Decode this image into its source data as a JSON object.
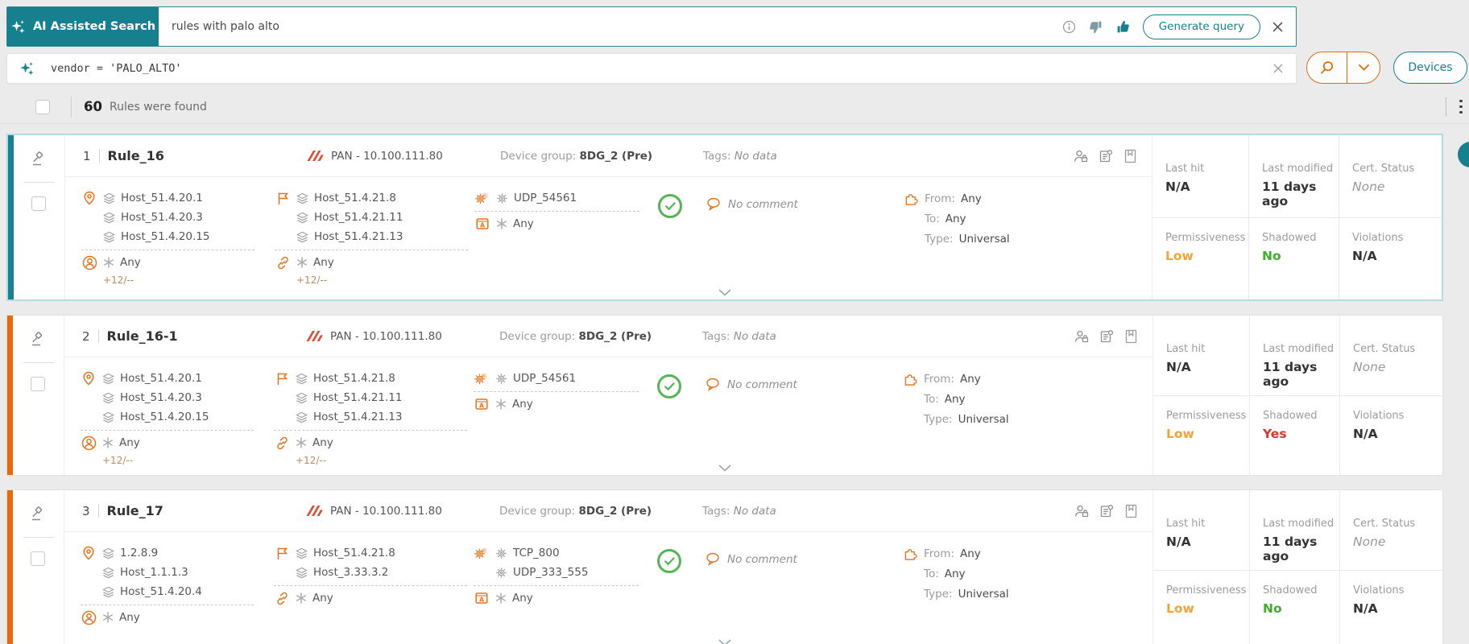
{
  "colors": {
    "accent_teal": "#17808F",
    "accent_orange": "#E8690B",
    "palo_alto_red": "#E4492F",
    "status_green": "#3FAE2A",
    "status_red": "#D8372F",
    "status_amber": "#F2A33C"
  },
  "top_bar": {
    "ai_label": "AI Assisted Search",
    "search_text": "rules with palo alto",
    "generate_button": "Generate query"
  },
  "query_bar": {
    "query_text": "vendor = 'PALO_ALTO'",
    "devices_button": "Devices"
  },
  "results": {
    "count": "60",
    "label": "Rules were found"
  },
  "labels": {
    "device_group": "Device group:",
    "tags": "Tags:",
    "from": "From:",
    "to": "To:",
    "type": "Type:",
    "last_hit": "Last hit",
    "last_modified": "Last modified",
    "cert_status": "Cert. Status",
    "permissiveness": "Permissiveness",
    "shadowed": "Shadowed",
    "violations": "Violations"
  },
  "icons": {
    "sparkle": "four-point star",
    "info": "circled i",
    "thumbs_down": "thumb down",
    "thumbs_up": "thumb up",
    "close": "x",
    "magnifier": "search magnifying glass",
    "chevron_down": "v",
    "kebab": "vertical dots menu",
    "gavel": "policy hammer",
    "pin": "source location pin",
    "flag": "destination flag",
    "gears": "service gears",
    "layers": "network object stack",
    "user": "users circle",
    "link": "link chain",
    "appbox": "application A box",
    "asterisk": "any asterisk",
    "check": "allow green check",
    "bubble": "comment speech bubble",
    "puzzle": "zone puzzle piece",
    "user_lock": "user permissions",
    "doc": "policy document",
    "bookmark": "bookmark page"
  },
  "rules": [
    {
      "index": "1",
      "name": "Rule_16",
      "selected": true,
      "device": "PAN - 10.100.111.80",
      "device_group": "8DG_2 (Pre)",
      "tags": "No data",
      "sources": [
        "Host_51.4.20.1",
        "Host_51.4.20.3",
        "Host_51.4.20.15"
      ],
      "source_any": "Any",
      "source_more": "+12/--",
      "destinations": [
        "Host_51.4.21.8",
        "Host_51.4.21.11",
        "Host_51.4.21.13"
      ],
      "destination_any": "Any",
      "destination_more": "+12/--",
      "services": [
        "UDP_54561"
      ],
      "service_any": "Any",
      "comment": "No comment",
      "zone": {
        "from": "Any",
        "to": "Any",
        "type": "Universal"
      },
      "stats": {
        "last_hit": "N/A",
        "last_modified": "11 days ago",
        "cert_status": "None",
        "permissiveness": "Low",
        "shadowed": "No",
        "violations": "N/A"
      }
    },
    {
      "index": "2",
      "name": "Rule_16-1",
      "selected": false,
      "device": "PAN - 10.100.111.80",
      "device_group": "8DG_2 (Pre)",
      "tags": "No data",
      "sources": [
        "Host_51.4.20.1",
        "Host_51.4.20.3",
        "Host_51.4.20.15"
      ],
      "source_any": "Any",
      "source_more": "+12/--",
      "destinations": [
        "Host_51.4.21.8",
        "Host_51.4.21.11",
        "Host_51.4.21.13"
      ],
      "destination_any": "Any",
      "destination_more": "+12/--",
      "services": [
        "UDP_54561"
      ],
      "service_any": "Any",
      "comment": "No comment",
      "zone": {
        "from": "Any",
        "to": "Any",
        "type": "Universal"
      },
      "stats": {
        "last_hit": "N/A",
        "last_modified": "11 days ago",
        "cert_status": "None",
        "permissiveness": "Low",
        "shadowed": "Yes",
        "violations": "N/A"
      }
    },
    {
      "index": "3",
      "name": "Rule_17",
      "selected": false,
      "device": "PAN - 10.100.111.80",
      "device_group": "8DG_2 (Pre)",
      "tags": "No data",
      "sources": [
        "1.2.8.9",
        "Host_1.1.1.3",
        "Host_51.4.20.4"
      ],
      "source_any": "Any",
      "source_more": null,
      "destinations": [
        "Host_51.4.21.8",
        "Host_3.33.3.2"
      ],
      "destination_any": "Any",
      "destination_more": null,
      "services": [
        "TCP_800",
        "UDP_333_555"
      ],
      "service_any": "Any",
      "comment": "No comment",
      "zone": {
        "from": "Any",
        "to": "Any",
        "type": "Universal"
      },
      "stats": {
        "last_hit": "N/A",
        "last_modified": "11 days ago",
        "cert_status": "None",
        "permissiveness": "Low",
        "shadowed": "No",
        "violations": "N/A"
      }
    }
  ]
}
